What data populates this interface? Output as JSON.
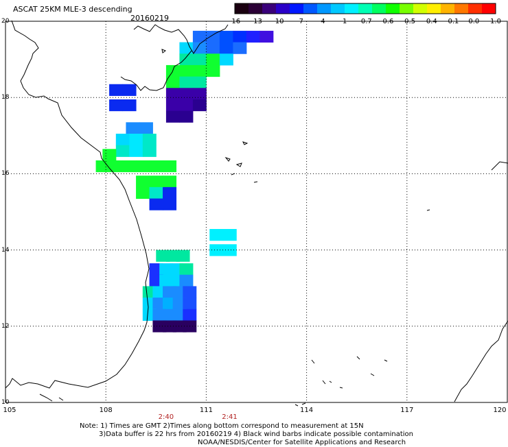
{
  "title": "ASCAT 25KM MLE-3 descending",
  "date": "20160219",
  "colorbar": {
    "labels": [
      "-16",
      "-13",
      "-10",
      "-7",
      "-4",
      "-1",
      "-0.7",
      "-0.6",
      "-0.5",
      "-0.4",
      "-0.1",
      "0.0",
      "1.0"
    ],
    "colors": [
      "#1a0010",
      "#2b0036",
      "#3a007a",
      "#2a00c8",
      "#0018ff",
      "#0058ff",
      "#0098ff",
      "#00c8ff",
      "#00f0ff",
      "#00ffb4",
      "#00ff60",
      "#10ff00",
      "#78ff00",
      "#d2ff00",
      "#ffee00",
      "#ffb400",
      "#ff7800",
      "#ff3000",
      "#ff0000"
    ]
  },
  "axes": {
    "lon_labels": [
      "105",
      "108",
      "111",
      "114",
      "117",
      "120"
    ],
    "lat_labels": [
      "20",
      "18",
      "16",
      "14",
      "12",
      "10"
    ],
    "lon_range": [
      105,
      120
    ],
    "lat_range": [
      10,
      20
    ]
  },
  "times": [
    {
      "label": "2:40",
      "lon": 109.8
    },
    {
      "label": "2:41",
      "lon": 111.7
    }
  ],
  "notes": [
    "Note: 1) Times are GMT 2)Times along bottom correspond to measurement at 15N",
    "3)Data buffer is 22 hrs from 20160219 4) Black wind barbs indicate possible contamination",
    "NOAA/NESDIS/Center for Satellite Applications and Research"
  ],
  "mle_cells": [
    {
      "lon": 110.8,
      "lat": 19.6,
      "v": "#1a6cff"
    },
    {
      "lon": 111.2,
      "lat": 19.6,
      "v": "#1a6cff"
    },
    {
      "lon": 111.6,
      "lat": 19.6,
      "v": "#0050ff"
    },
    {
      "lon": 112.0,
      "lat": 19.6,
      "v": "#0030ff"
    },
    {
      "lon": 112.4,
      "lat": 19.6,
      "v": "#2020ff"
    },
    {
      "lon": 112.8,
      "lat": 19.6,
      "v": "#4010e0"
    },
    {
      "lon": 110.4,
      "lat": 19.3,
      "v": "#00d9ff"
    },
    {
      "lon": 110.8,
      "lat": 19.3,
      "v": "#1a8cff"
    },
    {
      "lon": 111.2,
      "lat": 19.3,
      "v": "#1a6cff"
    },
    {
      "lon": 111.6,
      "lat": 19.3,
      "v": "#0050ff"
    },
    {
      "lon": 112.0,
      "lat": 19.3,
      "v": "#1a6cff"
    },
    {
      "lon": 110.4,
      "lat": 19.0,
      "v": "#00e8a0"
    },
    {
      "lon": 110.8,
      "lat": 19.0,
      "v": "#00e8a0"
    },
    {
      "lon": 111.2,
      "lat": 19.0,
      "v": "#10ff30"
    },
    {
      "lon": 111.6,
      "lat": 19.0,
      "v": "#00d9ff"
    },
    {
      "lon": 110.0,
      "lat": 18.7,
      "v": "#10ff30"
    },
    {
      "lon": 110.4,
      "lat": 18.7,
      "v": "#10ff30"
    },
    {
      "lon": 110.8,
      "lat": 18.7,
      "v": "#10ff30"
    },
    {
      "lon": 111.2,
      "lat": 18.7,
      "v": "#10ff30"
    },
    {
      "lon": 110.0,
      "lat": 18.4,
      "v": "#10ff30"
    },
    {
      "lon": 110.4,
      "lat": 18.4,
      "v": "#00e8a0"
    },
    {
      "lon": 110.8,
      "lat": 18.4,
      "v": "#00e8a0"
    },
    {
      "lon": 110.0,
      "lat": 18.1,
      "v": "#3a00a8"
    },
    {
      "lon": 110.4,
      "lat": 18.1,
      "v": "#3a00a8"
    },
    {
      "lon": 110.8,
      "lat": 18.1,
      "v": "#3a00a8"
    },
    {
      "lon": 110.0,
      "lat": 17.8,
      "v": "#3a00a8"
    },
    {
      "lon": 110.4,
      "lat": 17.8,
      "v": "#3a00a8"
    },
    {
      "lon": 110.8,
      "lat": 17.8,
      "v": "#2a0090"
    },
    {
      "lon": 110.0,
      "lat": 17.5,
      "v": "#2a0090"
    },
    {
      "lon": 110.4,
      "lat": 17.5,
      "v": "#2a0090"
    },
    {
      "lon": 108.3,
      "lat": 18.2,
      "v": "#0a2af0"
    },
    {
      "lon": 108.7,
      "lat": 18.2,
      "v": "#0a2af0"
    },
    {
      "lon": 108.3,
      "lat": 17.8,
      "v": "#0a2af0"
    },
    {
      "lon": 108.7,
      "lat": 17.8,
      "v": "#0a2af0"
    },
    {
      "lon": 108.8,
      "lat": 17.2,
      "v": "#1a8cff"
    },
    {
      "lon": 109.2,
      "lat": 17.2,
      "v": "#1a8cff"
    },
    {
      "lon": 108.5,
      "lat": 16.9,
      "v": "#00d9ff"
    },
    {
      "lon": 108.9,
      "lat": 16.9,
      "v": "#00e8ff"
    },
    {
      "lon": 109.3,
      "lat": 16.9,
      "v": "#00e8c8"
    },
    {
      "lon": 108.5,
      "lat": 16.6,
      "v": "#00e8c8"
    },
    {
      "lon": 108.9,
      "lat": 16.6,
      "v": "#00e8ff"
    },
    {
      "lon": 109.3,
      "lat": 16.6,
      "v": "#00e8c8"
    },
    {
      "lon": 108.1,
      "lat": 16.5,
      "v": "#10ff30"
    },
    {
      "lon": 107.9,
      "lat": 16.2,
      "v": "#10ff30"
    },
    {
      "lon": 108.3,
      "lat": 16.2,
      "v": "#10ff30"
    },
    {
      "lon": 108.7,
      "lat": 16.2,
      "v": "#10ff30"
    },
    {
      "lon": 109.1,
      "lat": 16.2,
      "v": "#10ff30"
    },
    {
      "lon": 109.5,
      "lat": 16.2,
      "v": "#10ff30"
    },
    {
      "lon": 109.9,
      "lat": 16.2,
      "v": "#10ff30"
    },
    {
      "lon": 109.1,
      "lat": 15.8,
      "v": "#10ff30"
    },
    {
      "lon": 109.5,
      "lat": 15.8,
      "v": "#10ff30"
    },
    {
      "lon": 109.9,
      "lat": 15.8,
      "v": "#10ff30"
    },
    {
      "lon": 109.1,
      "lat": 15.5,
      "v": "#10ff30"
    },
    {
      "lon": 109.5,
      "lat": 15.5,
      "v": "#00e8c8"
    },
    {
      "lon": 109.9,
      "lat": 15.5,
      "v": "#0a2af0"
    },
    {
      "lon": 109.5,
      "lat": 15.2,
      "v": "#0a2af0"
    },
    {
      "lon": 109.9,
      "lat": 15.2,
      "v": "#0a2af0"
    },
    {
      "lon": 111.3,
      "lat": 14.4,
      "v": "#00f0ff"
    },
    {
      "lon": 111.7,
      "lat": 14.4,
      "v": "#00f0ff"
    },
    {
      "lon": 111.3,
      "lat": 14.0,
      "v": "#00f0ff"
    },
    {
      "lon": 111.7,
      "lat": 14.0,
      "v": "#00f0ff"
    },
    {
      "lon": 109.7,
      "lat": 13.85,
      "v": "#00e8a0"
    },
    {
      "lon": 110.0,
      "lat": 13.85,
      "v": "#00e8a0"
    },
    {
      "lon": 110.3,
      "lat": 13.85,
      "v": "#00e8a0"
    },
    {
      "lon": 109.5,
      "lat": 13.5,
      "v": "#1a30ff"
    },
    {
      "lon": 109.8,
      "lat": 13.5,
      "v": "#00d9ff"
    },
    {
      "lon": 110.1,
      "lat": 13.5,
      "v": "#00d9ff"
    },
    {
      "lon": 110.4,
      "lat": 13.5,
      "v": "#00e8a0"
    },
    {
      "lon": 109.5,
      "lat": 13.2,
      "v": "#1a30ff"
    },
    {
      "lon": 109.8,
      "lat": 13.2,
      "v": "#00d9ff"
    },
    {
      "lon": 110.1,
      "lat": 13.2,
      "v": "#00d9ff"
    },
    {
      "lon": 110.4,
      "lat": 13.2,
      "v": "#1a8cff"
    },
    {
      "lon": 109.3,
      "lat": 12.9,
      "v": "#00e8a0"
    },
    {
      "lon": 109.6,
      "lat": 12.9,
      "v": "#00d9ff"
    },
    {
      "lon": 109.9,
      "lat": 12.9,
      "v": "#1a8cff"
    },
    {
      "lon": 110.2,
      "lat": 12.9,
      "v": "#1a8cff"
    },
    {
      "lon": 110.5,
      "lat": 12.9,
      "v": "#1a50ff"
    },
    {
      "lon": 109.3,
      "lat": 12.6,
      "v": "#00d9ff"
    },
    {
      "lon": 109.6,
      "lat": 12.6,
      "v": "#1a8cff"
    },
    {
      "lon": 109.9,
      "lat": 12.6,
      "v": "#00b0ff"
    },
    {
      "lon": 110.2,
      "lat": 12.6,
      "v": "#1a8cff"
    },
    {
      "lon": 110.5,
      "lat": 12.6,
      "v": "#1a50ff"
    },
    {
      "lon": 109.3,
      "lat": 12.3,
      "v": "#00d9ff"
    },
    {
      "lon": 109.6,
      "lat": 12.3,
      "v": "#1a8cff"
    },
    {
      "lon": 109.9,
      "lat": 12.3,
      "v": "#1a8cff"
    },
    {
      "lon": 110.2,
      "lat": 12.3,
      "v": "#1a8cff"
    },
    {
      "lon": 110.5,
      "lat": 12.3,
      "v": "#1a30ff"
    },
    {
      "lon": 109.6,
      "lat": 12.0,
      "v": "#2a0060"
    },
    {
      "lon": 109.9,
      "lat": 12.0,
      "v": "#2a0060"
    },
    {
      "lon": 110.2,
      "lat": 12.0,
      "v": "#2a0060"
    },
    {
      "lon": 110.5,
      "lat": 12.0,
      "v": "#2a0060"
    }
  ]
}
